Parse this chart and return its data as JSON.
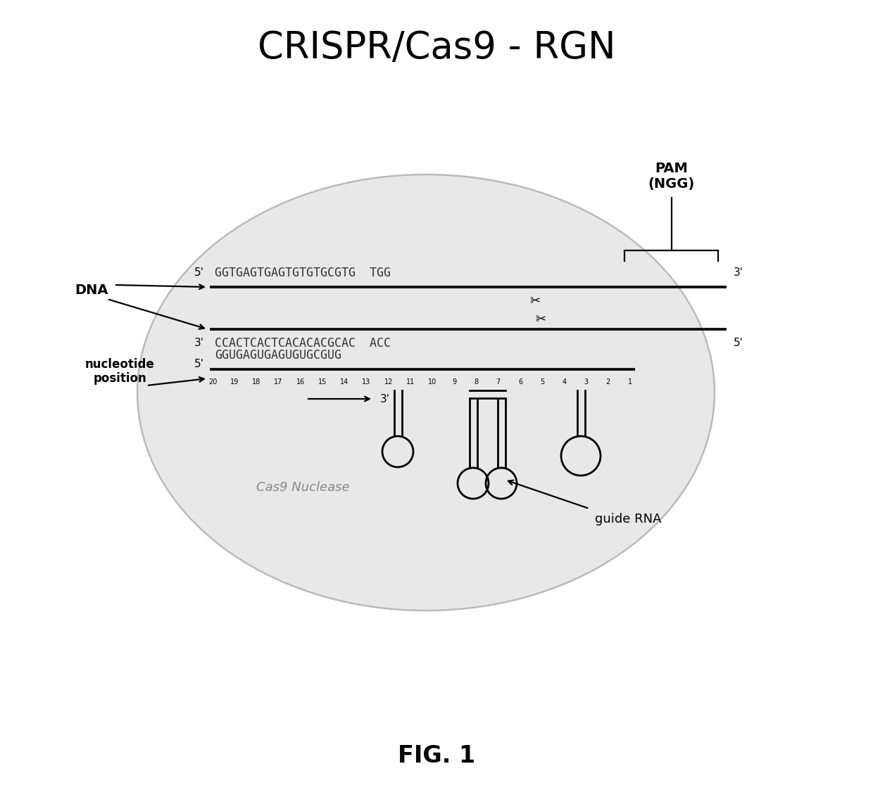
{
  "title": "CRISPR/Cas9 - RGN",
  "fig_label": "FIG. 1",
  "dna_top_seq": "GGTGAGTGAGTGTGTGCGTG  TGG",
  "dna_bottom_seq": "CCACTCACTCACACACGCAC  ACC",
  "rna_seq": "GGUGAGUGAGUGUGCGUG",
  "pam_label": "PAM\n(NGG)",
  "nucleotide_label": "nucleotide\nposition",
  "nuclease_label": "Cas9 Nuclease",
  "guide_rna_label": "guide RNA",
  "dna_label": "DNA",
  "bg_color": "#ffffff",
  "ellipse_fc": "#cccccc",
  "ellipse_ec": "#888888",
  "seq_color": "#333333",
  "line_color": "#111111",
  "title_fontsize": 38,
  "fig_label_fontsize": 24,
  "seq_fontsize": 12,
  "annotation_fontsize": 13,
  "num_fontsize": 7,
  "label_fontsize": 13
}
